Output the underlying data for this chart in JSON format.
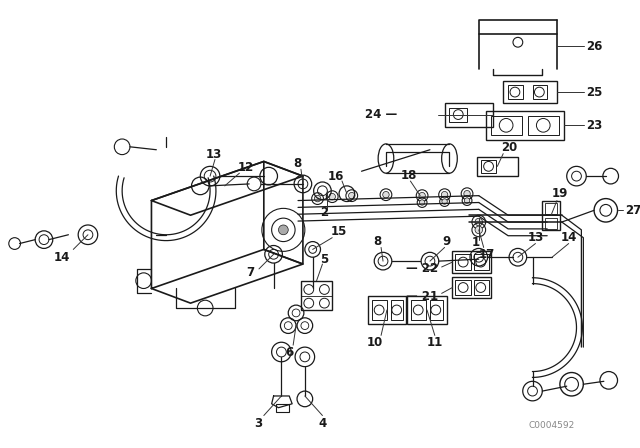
{
  "bg_color": "#ffffff",
  "line_color": "#1a1a1a",
  "diagram_code": "C0004592",
  "figsize": [
    6.4,
    4.48
  ],
  "dpi": 100
}
